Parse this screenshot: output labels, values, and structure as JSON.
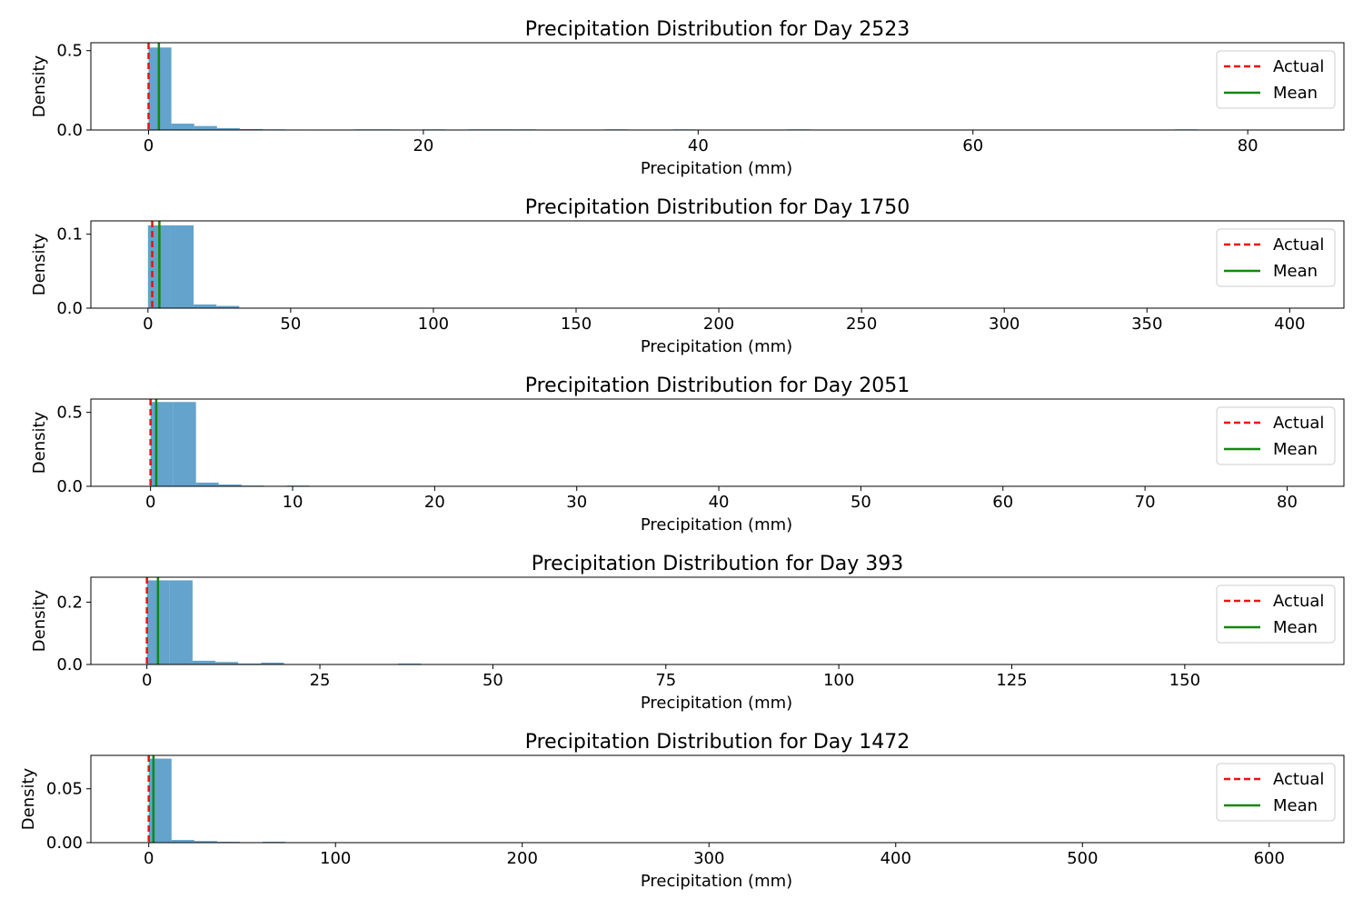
{
  "colors": {
    "bar": "#5b9ec9",
    "actual": "#ee1111",
    "mean": "#118811",
    "axis": "#000000"
  },
  "chart_data": [
    {
      "type": "bar",
      "title": "Precipitation Distribution for Day 2523",
      "xlabel": "Precipitation (mm)",
      "ylabel": "Density",
      "xlim": [
        -4.2,
        87.0
      ],
      "ylim": [
        0,
        0.55
      ],
      "xticks": [
        0,
        20,
        40,
        60,
        80
      ],
      "xtick_labels": [
        "0",
        "20",
        "40",
        "60",
        "80"
      ],
      "yticks": [
        0.0,
        0.5
      ],
      "ytick_labels": [
        "0.0",
        "0.5"
      ],
      "bin_width": 1.66,
      "bins": [
        {
          "x0": 0.0,
          "value": 0.52
        },
        {
          "x0": 1.66,
          "value": 0.04
        },
        {
          "x0": 3.32,
          "value": 0.025
        },
        {
          "x0": 4.98,
          "value": 0.012
        },
        {
          "x0": 6.64,
          "value": 0.006
        },
        {
          "x0": 8.3,
          "value": 0.004
        },
        {
          "x0": 9.96,
          "value": 0.003
        },
        {
          "x0": 14.94,
          "value": 0.004
        },
        {
          "x0": 16.6,
          "value": 0.004
        },
        {
          "x0": 19.92,
          "value": 0.004
        },
        {
          "x0": 23.24,
          "value": 0.004
        },
        {
          "x0": 24.9,
          "value": 0.004
        },
        {
          "x0": 26.56,
          "value": 0.004
        },
        {
          "x0": 33.2,
          "value": 0.004
        },
        {
          "x0": 38.18,
          "value": 0.004
        },
        {
          "x0": 46.48,
          "value": 0.004
        },
        {
          "x0": 74.7,
          "value": 0.004
        }
      ],
      "actual": 0.0,
      "mean": 0.75,
      "legend": [
        "Actual",
        "Mean"
      ],
      "legend_position": "top-right"
    },
    {
      "type": "bar",
      "title": "Precipitation Distribution for Day 1750",
      "xlabel": "Precipitation (mm)",
      "ylabel": "Density",
      "xlim": [
        -20,
        419
      ],
      "ylim": [
        0,
        0.118
      ],
      "xticks": [
        0,
        50,
        100,
        150,
        200,
        250,
        300,
        350,
        400
      ],
      "xtick_labels": [
        "0",
        "50",
        "100",
        "150",
        "200",
        "250",
        "300",
        "350",
        "400"
      ],
      "yticks": [
        0.0,
        0.1
      ],
      "ytick_labels": [
        "0.0",
        "0.1"
      ],
      "bin_width": 8.0,
      "bins": [
        {
          "x0": 0.0,
          "value": 0.112
        },
        {
          "x0": 8.0,
          "value": 0.112
        },
        {
          "x0": 16.0,
          "value": 0.005
        },
        {
          "x0": 24.0,
          "value": 0.003
        }
      ],
      "actual": 1.5,
      "mean": 4.0,
      "legend": [
        "Actual",
        "Mean"
      ],
      "legend_position": "top-right"
    },
    {
      "type": "bar",
      "title": "Precipitation Distribution for Day 2051",
      "xlabel": "Precipitation (mm)",
      "ylabel": "Density",
      "xlim": [
        -4.2,
        84.0
      ],
      "ylim": [
        0,
        0.59
      ],
      "xticks": [
        0,
        10,
        20,
        30,
        40,
        50,
        60,
        70,
        80
      ],
      "xtick_labels": [
        "0",
        "10",
        "20",
        "30",
        "40",
        "50",
        "60",
        "70",
        "80"
      ],
      "yticks": [
        0.0,
        0.5
      ],
      "ytick_labels": [
        "0.0",
        "0.5"
      ],
      "bin_width": 1.6,
      "bins": [
        {
          "x0": 0.0,
          "value": 0.57
        },
        {
          "x0": 1.6,
          "value": 0.57
        },
        {
          "x0": 3.2,
          "value": 0.025
        },
        {
          "x0": 4.8,
          "value": 0.012
        },
        {
          "x0": 6.4,
          "value": 0.005
        },
        {
          "x0": 8.0,
          "value": 0.003
        },
        {
          "x0": 9.6,
          "value": 0.005
        }
      ],
      "actual": 0.0,
      "mean": 0.4,
      "legend": [
        "Actual",
        "Mean"
      ],
      "legend_position": "top-right"
    },
    {
      "type": "bar",
      "title": "Precipitation Distribution for Day 393",
      "xlabel": "Precipitation (mm)",
      "ylabel": "Density",
      "xlim": [
        -8.1,
        173.0
      ],
      "ylim": [
        0,
        0.28
      ],
      "xticks": [
        0,
        25,
        50,
        75,
        100,
        125,
        150
      ],
      "xtick_labels": [
        "0",
        "25",
        "50",
        "75",
        "100",
        "125",
        "150"
      ],
      "yticks": [
        0.0,
        0.2
      ],
      "ytick_labels": [
        "0.0",
        "0.2"
      ],
      "bin_width": 3.3,
      "bins": [
        {
          "x0": 0.0,
          "value": 0.27
        },
        {
          "x0": 3.3,
          "value": 0.27
        },
        {
          "x0": 6.6,
          "value": 0.012
        },
        {
          "x0": 9.9,
          "value": 0.008
        },
        {
          "x0": 13.2,
          "value": 0.003
        },
        {
          "x0": 16.5,
          "value": 0.002
        },
        {
          "x0": 16.5,
          "value": 0.006
        },
        {
          "x0": 36.3,
          "value": 0.003
        }
      ],
      "actual": 0.0,
      "mean": 1.6,
      "legend": [
        "Actual",
        "Mean"
      ],
      "legend_position": "top-right"
    },
    {
      "type": "bar",
      "title": "Precipitation Distribution for Day 1472",
      "xlabel": "Precipitation (mm)",
      "ylabel": "Density",
      "xlim": [
        -31,
        640
      ],
      "ylim": [
        0,
        0.081
      ],
      "xticks": [
        0,
        100,
        200,
        300,
        400,
        500,
        600
      ],
      "xtick_labels": [
        "0",
        "100",
        "200",
        "300",
        "400",
        "500",
        "600"
      ],
      "yticks": [
        0.0,
        0.05
      ],
      "ytick_labels": [
        "0.00",
        "0.05"
      ],
      "bin_width": 12.2,
      "bins": [
        {
          "x0": 0.0,
          "value": 0.078
        },
        {
          "x0": 12.2,
          "value": 0.0025
        },
        {
          "x0": 24.4,
          "value": 0.0015
        },
        {
          "x0": 36.6,
          "value": 0.0008
        },
        {
          "x0": 61.0,
          "value": 0.0008
        }
      ],
      "actual": 0.0,
      "mean": 2.5,
      "legend": [
        "Actual",
        "Mean"
      ],
      "legend_position": "top-right"
    }
  ]
}
